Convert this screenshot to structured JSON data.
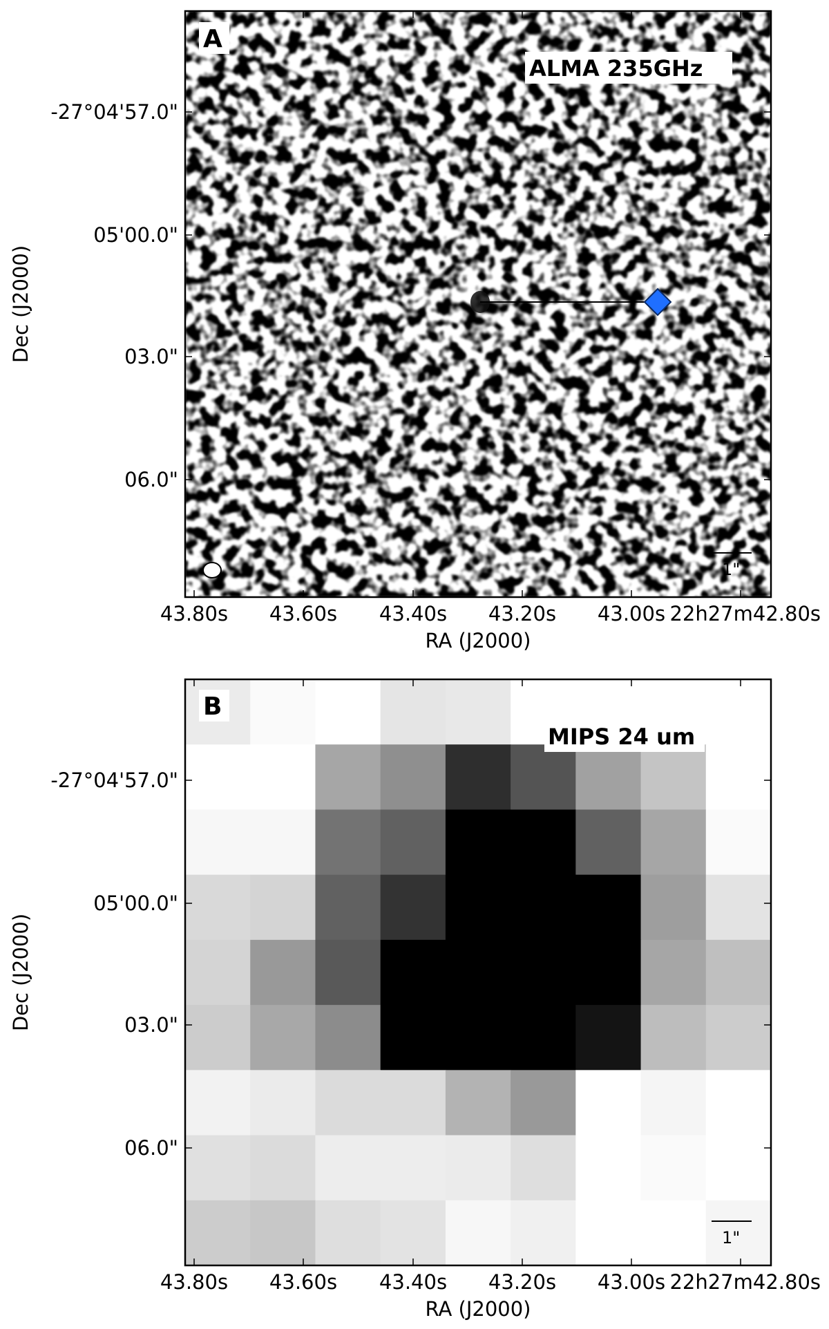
{
  "figure": {
    "panels": [
      {
        "letter": "A",
        "band_label": "ALMA 235GHz",
        "scale_bar_label": "1\"",
        "xlabel": "RA (J2000)",
        "ylabel": "Dec (J2000)",
        "x_ticks": [
          "43.80s",
          "43.60s",
          "43.40s",
          "43.20s",
          "43.00s",
          "22h27m42.80s"
        ],
        "y_ticks": [
          "-27°04'57.0\"",
          "05'00.0\"",
          "03.0\"",
          "06.0\""
        ],
        "marker": "blue-diamond",
        "marker_color": "#1f6fff",
        "image_type": "noise-map"
      },
      {
        "letter": "B",
        "band_label": "MIPS 24 um",
        "scale_bar_label": "1\"",
        "xlabel": "RA (J2000)",
        "ylabel": "Dec (J2000)",
        "x_ticks": [
          "43.80s",
          "43.60s",
          "43.40s",
          "43.20s",
          "43.00s",
          "22h27m42.80s"
        ],
        "y_ticks": [
          "-27°04'57.0\"",
          "05'00.0\"",
          "03.0\"",
          "06.0\""
        ],
        "image_type": "pixel-grid",
        "pixel_grid": [
          [
            92,
            98,
            100,
            90,
            91,
            100,
            100,
            100,
            100
          ],
          [
            100,
            100,
            65,
            56,
            18,
            33,
            63,
            77,
            100
          ],
          [
            97,
            97,
            45,
            38,
            0,
            0,
            38,
            65,
            98
          ],
          [
            85,
            83,
            38,
            20,
            0,
            0,
            0,
            62,
            89
          ],
          [
            83,
            60,
            35,
            0,
            0,
            0,
            0,
            65,
            75
          ],
          [
            80,
            66,
            55,
            0,
            0,
            0,
            8,
            74,
            80
          ],
          [
            95,
            92,
            86,
            86,
            70,
            60,
            100,
            96,
            100
          ],
          [
            88,
            86,
            93,
            93,
            92,
            87,
            100,
            98,
            100
          ],
          [
            80,
            78,
            87,
            89,
            97,
            94,
            100,
            100,
            96
          ]
        ]
      }
    ]
  }
}
